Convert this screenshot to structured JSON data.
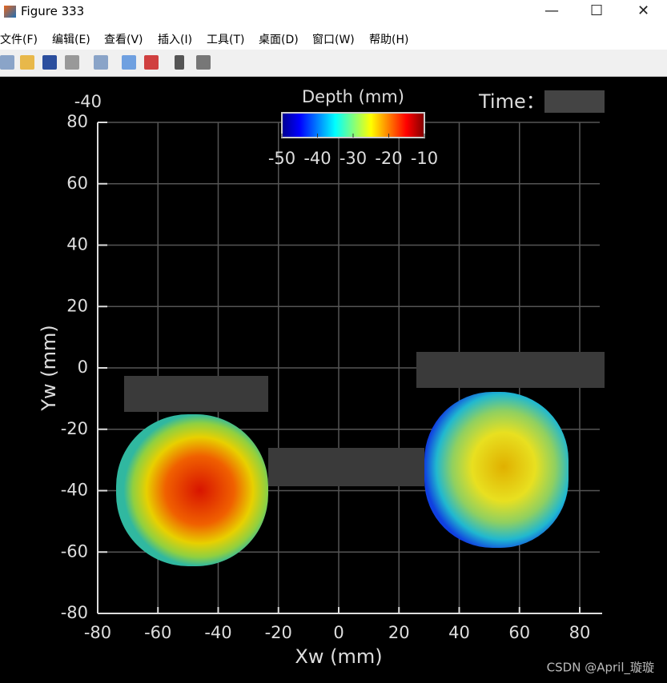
{
  "window": {
    "title": "Figure 333",
    "menus": [
      "文件(F)",
      "编辑(E)",
      "查看(V)",
      "插入(I)",
      "工具(T)",
      "桌面(D)",
      "窗口(W)",
      "帮助(H)"
    ]
  },
  "chart_data": {
    "type": "surface",
    "xlabel": "Xw (mm)",
    "ylabel": "Yw (mm)",
    "xlim": [
      -80,
      80
    ],
    "xticks": [
      -80,
      -60,
      -40,
      -20,
      0,
      20,
      40,
      60,
      80
    ],
    "ylim": [
      -80,
      80
    ],
    "yticks": [
      -80,
      -60,
      -40,
      -20,
      0,
      20,
      40,
      60,
      80
    ],
    "zticks": [
      -40
    ],
    "grid": true,
    "colorbar": {
      "label": "Depth (mm)",
      "clim": [
        -50,
        -10
      ],
      "ticks": [
        -50,
        -40,
        -30,
        -20,
        -10
      ],
      "colormap": "jet"
    },
    "time_label": "Time："
  },
  "watermark": "CSDN @April_璇璇"
}
